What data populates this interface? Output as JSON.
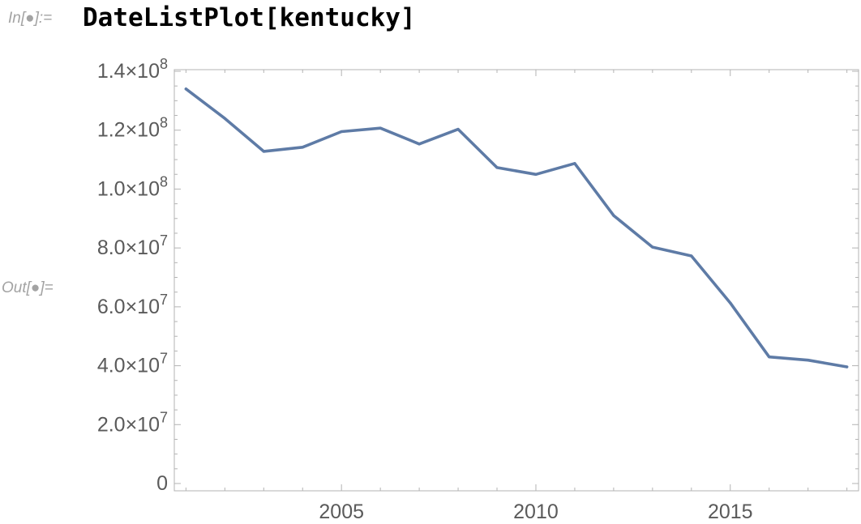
{
  "input_prompt": "In[●]:=",
  "output_prompt": "Out[●]=",
  "input_expression": "DateListPlot[kentucky]",
  "colors": {
    "line": "#5e7ba6",
    "frame": "#b3b3b3",
    "tick_text": "#5a5a5a",
    "prompt": "#a3a3a3"
  },
  "chart_data": {
    "type": "line",
    "title": "",
    "xlabel": "",
    "ylabel": "",
    "xlim": [
      2000.7,
      2018.3
    ],
    "ylim": [
      0,
      140000000
    ],
    "grid": false,
    "x": [
      2001,
      2002,
      2003,
      2004,
      2005,
      2006,
      2007,
      2008,
      2009,
      2010,
      2011,
      2012,
      2013,
      2014,
      2015,
      2016,
      2017,
      2018
    ],
    "series": [
      {
        "values": [
          134000000,
          124000000,
          112800000,
          114200000,
          119500000,
          120700000,
          115300000,
          120300000,
          107300000,
          105000000,
          108700000,
          91000000,
          80300000,
          77300000,
          61300000,
          43000000,
          41900000,
          39600000
        ]
      }
    ],
    "x_ticks": [
      {
        "value": 2005,
        "label": "2005"
      },
      {
        "value": 2010,
        "label": "2010"
      },
      {
        "value": 2015,
        "label": "2015"
      }
    ],
    "y_ticks": [
      {
        "value": 0,
        "mantissa": "0",
        "exponent": ""
      },
      {
        "value": 20000000,
        "mantissa": "2.0",
        "exponent": "7"
      },
      {
        "value": 40000000,
        "mantissa": "4.0",
        "exponent": "7"
      },
      {
        "value": 60000000,
        "mantissa": "6.0",
        "exponent": "7"
      },
      {
        "value": 80000000,
        "mantissa": "8.0",
        "exponent": "7"
      },
      {
        "value": 100000000,
        "mantissa": "1.0",
        "exponent": "8"
      },
      {
        "value": 120000000,
        "mantissa": "1.2",
        "exponent": "8"
      },
      {
        "value": 140000000,
        "mantissa": "1.4",
        "exponent": "8"
      }
    ]
  }
}
